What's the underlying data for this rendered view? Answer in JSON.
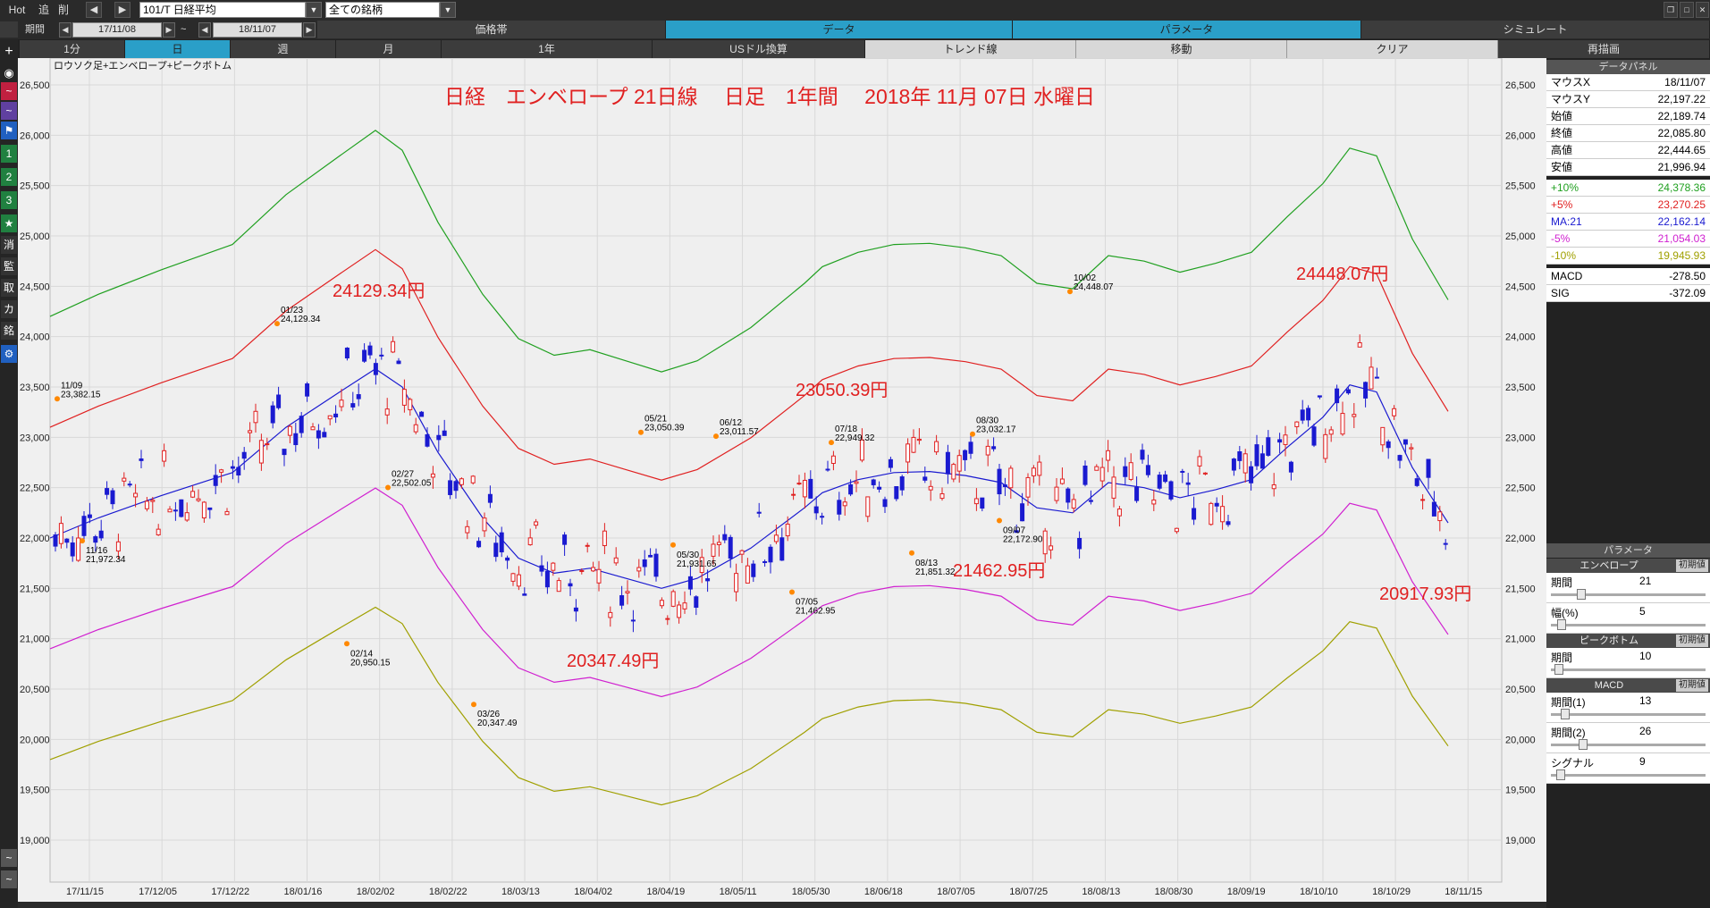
{
  "toolbar": {
    "hot": "Hot",
    "add": "追",
    "del": "削",
    "symbol": "101/T 日経平均",
    "universe": "全ての銘柄"
  },
  "row2": {
    "period_label": "期間",
    "date_from": "17/11/08",
    "tilde": "~",
    "date_to": "18/11/07",
    "segments": [
      "価格帯",
      "データ",
      "パラメータ",
      "シミュレート"
    ],
    "active_segment": 1
  },
  "row3": {
    "buttons": [
      "1分",
      "日",
      "週",
      "月",
      "1年",
      "USドル換算",
      "トレンド線",
      "移動",
      "クリア",
      "再描画"
    ]
  },
  "sidebar": {
    "items": [
      "1",
      "2",
      "3",
      "★",
      "消",
      "監",
      "取",
      "カ",
      "銘"
    ]
  },
  "chart": {
    "legend": "ロウソク足+エンベロープ+ピークボトム",
    "title": "日経　エンベロープ 21日線　 日足　1年間　 2018年 11月 07日 水曜日",
    "y_ticks": [
      "26,500",
      "26,000",
      "25,500",
      "25,000",
      "24,500",
      "24,000",
      "23,500",
      "23,000",
      "22,500",
      "22,000",
      "21,500",
      "21,000",
      "20,500",
      "20,000",
      "19,500",
      "19,000"
    ],
    "x_ticks": [
      "17/11/15",
      "17/12/05",
      "17/12/22",
      "18/01/16",
      "18/02/02",
      "18/02/22",
      "18/03/13",
      "18/04/02",
      "18/04/19",
      "18/05/11",
      "18/05/30",
      "18/06/18",
      "18/07/05",
      "18/07/25",
      "18/08/13",
      "18/08/30",
      "18/09/19",
      "18/10/10",
      "18/10/29",
      "18/11/15"
    ],
    "big_labels": [
      {
        "text": "24129.34円",
        "color": "#e02020"
      },
      {
        "text": "23050.39円",
        "color": "#e02020"
      },
      {
        "text": "24448.07円",
        "color": "#e02020"
      },
      {
        "text": "20347.49円",
        "color": "#e02020"
      },
      {
        "text": "21462.95円",
        "color": "#e02020"
      },
      {
        "text": "20917.93円",
        "color": "#e02020"
      }
    ],
    "peak_labels": [
      {
        "date": "11/09",
        "val": "23,382.15"
      },
      {
        "date": "11/16",
        "val": "21,972.34"
      },
      {
        "date": "01/23",
        "val": "24,129.34"
      },
      {
        "date": "02/14",
        "val": "20,950.15"
      },
      {
        "date": "02/27",
        "val": "22,502.05"
      },
      {
        "date": "03/26",
        "val": "20,347.49"
      },
      {
        "date": "05/21",
        "val": "23,050.39"
      },
      {
        "date": "05/30",
        "val": "21,931.65"
      },
      {
        "date": "06/12",
        "val": "23,011.57"
      },
      {
        "date": "07/05",
        "val": "21,462.95"
      },
      {
        "date": "07/18",
        "val": "22,949.32"
      },
      {
        "date": "08/13",
        "val": "21,851.32"
      },
      {
        "date": "08/30",
        "val": "23,032.17"
      },
      {
        "date": "09/07",
        "val": "22,172.90"
      },
      {
        "date": "10/02",
        "val": "24,448.07"
      }
    ],
    "colors": {
      "up": "#e02020",
      "down": "#1a1ad0",
      "ma": "#1a1ad0",
      "p5": "#e02020",
      "p10": "#20a020",
      "m5": "#d020d0",
      "m10": "#a0a000"
    }
  },
  "data_panel": {
    "header": "データパネル",
    "rows": [
      {
        "k": "マウスX",
        "v": "18/11/07",
        "c": "#000"
      },
      {
        "k": "マウスY",
        "v": "22,197.22",
        "c": "#000"
      },
      {
        "k": "始値",
        "v": "22,189.74",
        "c": "#000"
      },
      {
        "k": "終値",
        "v": "22,085.80",
        "c": "#000"
      },
      {
        "k": "高値",
        "v": "22,444.65",
        "c": "#000"
      },
      {
        "k": "安値",
        "v": "21,996.94",
        "c": "#000"
      },
      {
        "k": "+10%",
        "v": "24,378.36",
        "c": "#20a020"
      },
      {
        "k": "+5%",
        "v": "23,270.25",
        "c": "#e02020"
      },
      {
        "k": "MA:21",
        "v": "22,162.14",
        "c": "#1a1ad0"
      },
      {
        "k": "-5%",
        "v": "21,054.03",
        "c": "#d020d0"
      },
      {
        "k": "-10%",
        "v": "19,945.93",
        "c": "#a0a000"
      },
      {
        "k": "MACD",
        "v": "-278.50",
        "c": "#000"
      },
      {
        "k": "SIG",
        "v": "-372.09",
        "c": "#000"
      }
    ]
  },
  "param_panel": {
    "header": "パラメータ",
    "init_label": "初期値",
    "envelope": {
      "title": "エンベロープ",
      "period_label": "期間",
      "period": "21",
      "width_label": "幅(%)",
      "width": "5"
    },
    "peak": {
      "title": "ピークボトム",
      "period_label": "期間",
      "period": "10"
    },
    "macd": {
      "title": "MACD",
      "p1_label": "期間(1)",
      "p1": "13",
      "p2_label": "期間(2)",
      "p2": "26",
      "sig_label": "シグナル",
      "sig": "9"
    }
  }
}
